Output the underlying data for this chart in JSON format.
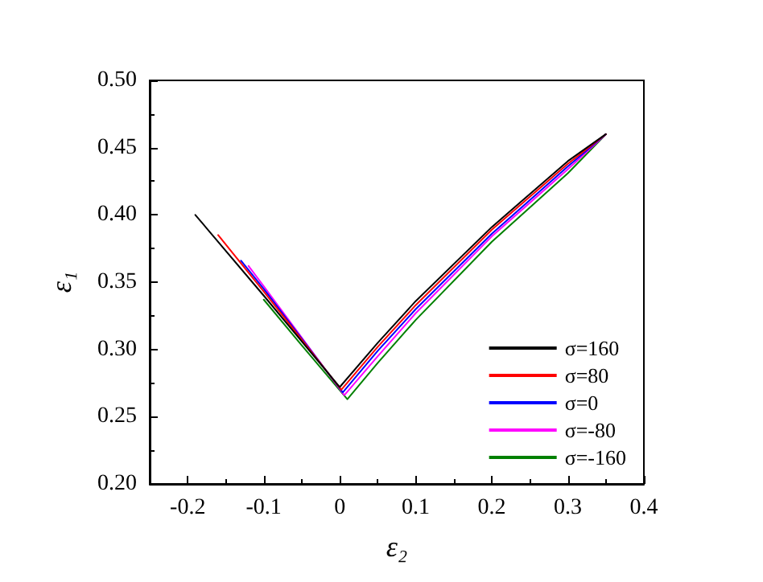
{
  "chart_data": {
    "type": "line",
    "xlabel": "ε₂",
    "ylabel": "ε₁",
    "xlim": [
      -0.25,
      0.4
    ],
    "xticks": [
      -0.2,
      -0.1,
      0.0,
      0.1,
      0.2,
      0.3,
      0.4
    ],
    "ylim": [
      0.2,
      0.5
    ],
    "yticks": [
      {
        "value": 0.2,
        "label": "0.20"
      },
      0.25,
      {
        "value": 0.3,
        "label": "0.30"
      },
      0.35,
      {
        "value": 0.4,
        "label": "0.40"
      },
      0.45,
      {
        "value": 0.5,
        "label": "0.50"
      }
    ],
    "grid": false,
    "legend": "bottom right",
    "marker": "none",
    "line_style": "solid",
    "series": [
      {
        "name": "σ=160",
        "color": "#000000",
        "x": [
          -0.19,
          -0.1,
          0.0,
          0.05,
          0.1,
          0.2,
          0.3,
          0.35
        ],
        "values": [
          0.4,
          0.34,
          0.272,
          0.305,
          0.336,
          0.391,
          0.44,
          0.46
        ]
      },
      {
        "name": "σ=80",
        "color": "#ff0000",
        "x": [
          -0.16,
          -0.1,
          0.002,
          0.05,
          0.1,
          0.2,
          0.3,
          0.35
        ],
        "values": [
          0.385,
          0.343,
          0.27,
          0.302,
          0.333,
          0.389,
          0.438,
          0.46
        ]
      },
      {
        "name": "σ=0",
        "color": "#0000ff",
        "x": [
          -0.13,
          -0.1,
          0.004,
          0.05,
          0.1,
          0.2,
          0.3,
          0.35
        ],
        "values": [
          0.366,
          0.345,
          0.268,
          0.299,
          0.33,
          0.386,
          0.436,
          0.46
        ]
      },
      {
        "name": "σ=-80",
        "color": "#ff00ff",
        "x": [
          -0.12,
          -0.1,
          0.006,
          0.05,
          0.1,
          0.2,
          0.3,
          0.35
        ],
        "values": [
          0.362,
          0.347,
          0.266,
          0.295,
          0.327,
          0.384,
          0.434,
          0.46
        ]
      },
      {
        "name": "σ=-160",
        "color": "#008000",
        "x": [
          -0.1,
          -0.05,
          0.01,
          0.05,
          0.1,
          0.2,
          0.3,
          0.35
        ],
        "values": [
          0.337,
          0.303,
          0.263,
          0.29,
          0.322,
          0.38,
          0.431,
          0.46
        ]
      }
    ]
  }
}
